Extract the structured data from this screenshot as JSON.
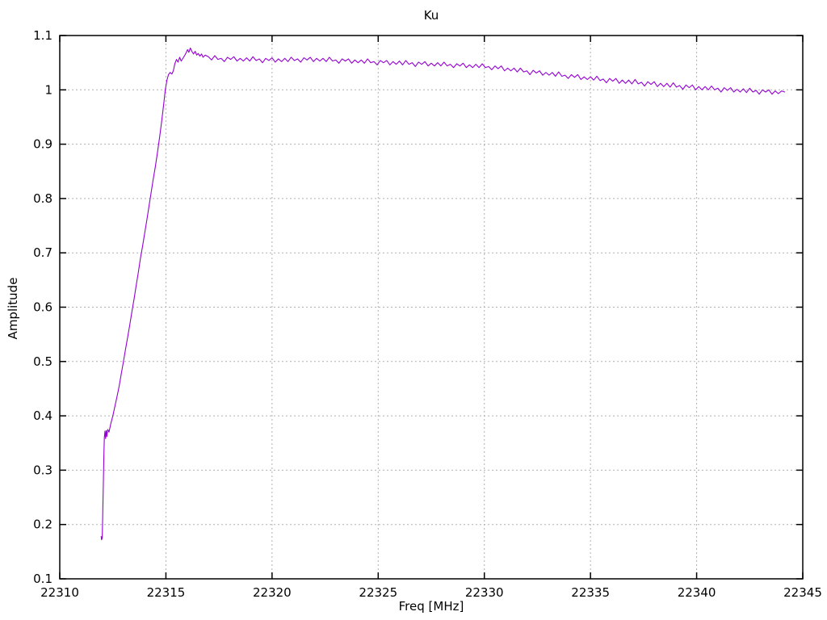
{
  "chart_data": {
    "type": "line",
    "title": "Ku",
    "xlabel": "Freq [MHz]",
    "ylabel": "Amplitude",
    "grid": true,
    "legend": "none",
    "background_color": "#ffffff",
    "border_color": "#000000",
    "grid_color": "#b0b0b0",
    "x_axis": {
      "min": 22310,
      "max": 22345,
      "ticks": [
        22310,
        22315,
        22320,
        22325,
        22330,
        22335,
        22340,
        22345
      ],
      "tick_labels": [
        "22310",
        "22315",
        "22320",
        "22325",
        "22330",
        "22335",
        "22340",
        "22345"
      ]
    },
    "y_axis": {
      "min": 0.1,
      "max": 1.1,
      "ticks": [
        0.1,
        0.2,
        0.3,
        0.4,
        0.5,
        0.6,
        0.7,
        0.8,
        0.9,
        1.0,
        1.1
      ],
      "tick_labels": [
        "0.1",
        "0.2",
        "0.3",
        "0.4",
        "0.5",
        "0.6",
        "0.7",
        "0.8",
        "0.9",
        "1",
        "1.1"
      ]
    },
    "series": [
      {
        "name": "Ku",
        "color": "#9400d3",
        "points": [
          [
            22311.95,
            0.178
          ],
          [
            22311.97,
            0.172
          ],
          [
            22312.0,
            0.175
          ],
          [
            22312.02,
            0.21
          ],
          [
            22312.04,
            0.25
          ],
          [
            22312.06,
            0.29
          ],
          [
            22312.08,
            0.33
          ],
          [
            22312.1,
            0.36
          ],
          [
            22312.13,
            0.372
          ],
          [
            22312.16,
            0.358
          ],
          [
            22312.19,
            0.373
          ],
          [
            22312.22,
            0.362
          ],
          [
            22312.26,
            0.375
          ],
          [
            22312.32,
            0.37
          ],
          [
            22312.4,
            0.385
          ],
          [
            22312.5,
            0.4
          ],
          [
            22312.6,
            0.418
          ],
          [
            22312.7,
            0.436
          ],
          [
            22312.8,
            0.455
          ],
          [
            22312.9,
            0.478
          ],
          [
            22313.0,
            0.5
          ],
          [
            22313.1,
            0.523
          ],
          [
            22313.2,
            0.545
          ],
          [
            22313.3,
            0.568
          ],
          [
            22313.4,
            0.592
          ],
          [
            22313.5,
            0.615
          ],
          [
            22313.6,
            0.64
          ],
          [
            22313.7,
            0.664
          ],
          [
            22313.8,
            0.69
          ],
          [
            22313.9,
            0.712
          ],
          [
            22314.0,
            0.736
          ],
          [
            22314.1,
            0.76
          ],
          [
            22314.2,
            0.785
          ],
          [
            22314.3,
            0.81
          ],
          [
            22314.4,
            0.835
          ],
          [
            22314.5,
            0.858
          ],
          [
            22314.6,
            0.884
          ],
          [
            22314.7,
            0.912
          ],
          [
            22314.8,
            0.942
          ],
          [
            22314.9,
            0.975
          ],
          [
            22314.97,
            1.0
          ],
          [
            22315.05,
            1.018
          ],
          [
            22315.12,
            1.028
          ],
          [
            22315.2,
            1.032
          ],
          [
            22315.28,
            1.029
          ],
          [
            22315.35,
            1.035
          ],
          [
            22315.42,
            1.048
          ],
          [
            22315.5,
            1.056
          ],
          [
            22315.57,
            1.051
          ],
          [
            22315.65,
            1.06
          ],
          [
            22315.72,
            1.053
          ],
          [
            22315.8,
            1.058
          ],
          [
            22315.88,
            1.063
          ],
          [
            22315.95,
            1.068
          ],
          [
            22316.02,
            1.074
          ],
          [
            22316.08,
            1.069
          ],
          [
            22316.15,
            1.077
          ],
          [
            22316.22,
            1.071
          ],
          [
            22316.3,
            1.066
          ],
          [
            22316.38,
            1.071
          ],
          [
            22316.45,
            1.064
          ],
          [
            22316.52,
            1.067
          ],
          [
            22316.6,
            1.062
          ],
          [
            22316.68,
            1.066
          ],
          [
            22316.75,
            1.06
          ],
          [
            22316.85,
            1.064
          ]
        ],
        "uniform_tail": {
          "x_start": 22317.0,
          "x_step": 0.15,
          "values": [
            1.061,
            1.055,
            1.063,
            1.056,
            1.058,
            1.052,
            1.06,
            1.056,
            1.061,
            1.053,
            1.058,
            1.053,
            1.059,
            1.053,
            1.061,
            1.054,
            1.057,
            1.05,
            1.058,
            1.054,
            1.059,
            1.051,
            1.057,
            1.052,
            1.058,
            1.052,
            1.06,
            1.054,
            1.057,
            1.051,
            1.059,
            1.055,
            1.06,
            1.052,
            1.058,
            1.053,
            1.058,
            1.052,
            1.06,
            1.053,
            1.055,
            1.049,
            1.057,
            1.053,
            1.057,
            1.049,
            1.055,
            1.05,
            1.055,
            1.049,
            1.057,
            1.05,
            1.052,
            1.046,
            1.054,
            1.05,
            1.054,
            1.046,
            1.052,
            1.047,
            1.053,
            1.046,
            1.054,
            1.047,
            1.05,
            1.043,
            1.051,
            1.047,
            1.052,
            1.044,
            1.049,
            1.044,
            1.05,
            1.044,
            1.051,
            1.044,
            1.047,
            1.041,
            1.048,
            1.044,
            1.049,
            1.041,
            1.046,
            1.041,
            1.047,
            1.041,
            1.048,
            1.041,
            1.043,
            1.037,
            1.044,
            1.039,
            1.044,
            1.035,
            1.04,
            1.035,
            1.04,
            1.033,
            1.04,
            1.033,
            1.035,
            1.028,
            1.036,
            1.031,
            1.035,
            1.027,
            1.032,
            1.027,
            1.032,
            1.025,
            1.033,
            1.025,
            1.027,
            1.021,
            1.028,
            1.023,
            1.028,
            1.019,
            1.024,
            1.019,
            1.024,
            1.018,
            1.025,
            1.017,
            1.02,
            1.013,
            1.021,
            1.016,
            1.021,
            1.012,
            1.018,
            1.012,
            1.018,
            1.011,
            1.019,
            1.011,
            1.014,
            1.007,
            1.015,
            1.01,
            1.015,
            1.006,
            1.012,
            1.006,
            1.012,
            1.005,
            1.013,
            1.005,
            1.008,
            1.001,
            1.009,
            1.004,
            1.009,
            1.0,
            1.006,
            1.0,
            1.006,
            1.0,
            1.007,
            1.0,
            1.003,
            0.996,
            1.004,
            0.999,
            1.004,
            0.996,
            1.001,
            0.996,
            1.002,
            0.995,
            1.003,
            0.996,
            0.999,
            0.992,
            1.0,
            0.996,
            1.0,
            0.992,
            0.998,
            0.993,
            0.998,
            0.996
          ]
        }
      }
    ]
  }
}
